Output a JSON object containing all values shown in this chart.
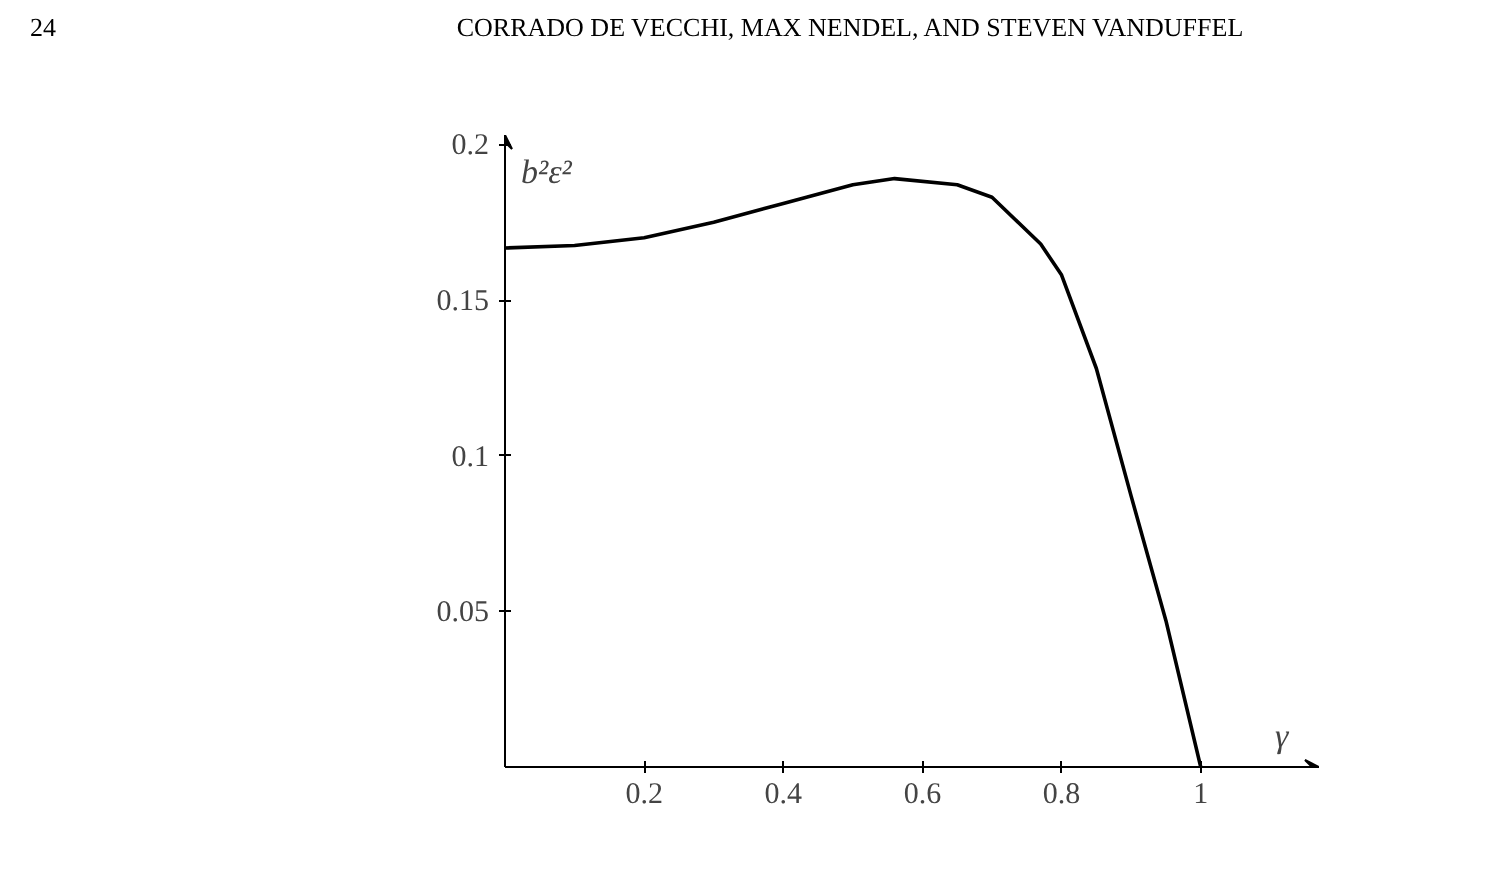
{
  "chart_data": {
    "type": "line",
    "annotations": [
      "24",
      "CORRADO DE VECCHI, MAX NENDEL, AND STEVEN VANDUFFEL"
    ],
    "xlabel": "γ",
    "ylabel": "b²ε²",
    "x": [
      0,
      0.1,
      0.2,
      0.3,
      0.4,
      0.5,
      0.56,
      0.65,
      0.7,
      0.77,
      0.8,
      0.85,
      0.9,
      0.95,
      1
    ],
    "series": [
      {
        "color": "#000000",
        "values": [
          0.1667,
          0.1675,
          0.17,
          0.175,
          0.181,
          0.187,
          0.189,
          0.187,
          0.183,
          0.168,
          0.158,
          0.128,
          0.087,
          0.047,
          0
        ]
      }
    ],
    "xlim": [
      0,
      1.17
    ],
    "ylim": [
      0,
      0.203
    ],
    "xticks": [
      0.2,
      0.4,
      0.6,
      0.8,
      1
    ],
    "yticks": [
      0.05,
      0.1,
      0.15,
      0.2
    ],
    "grid": false,
    "marker": "none",
    "line_style": "solid"
  }
}
